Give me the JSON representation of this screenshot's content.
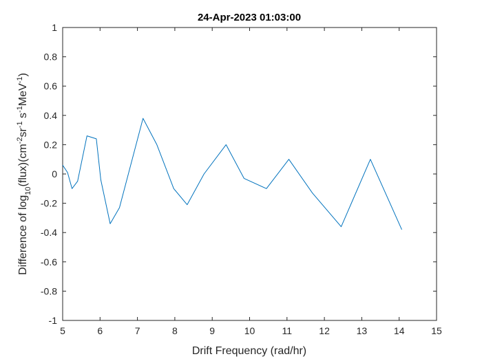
{
  "chart_data": {
    "type": "line",
    "title": "24-Apr-2023 01:03:00",
    "xlabel": "Drift Frequency (rad/hr)",
    "ylabel": {
      "prefix": "Difference of log",
      "sub10": "10",
      "flux": "(flux)(cm",
      "sup1": "-2",
      "sr": "sr",
      "sup2": "-1",
      "s": " s",
      "sup3": "-1",
      "mev": "MeV",
      "sup4": "-1",
      "close": ")"
    },
    "xlim": [
      5,
      15
    ],
    "ylim": [
      -1,
      1
    ],
    "xticks": [
      "5",
      "6",
      "7",
      "8",
      "9",
      "10",
      "11",
      "12",
      "13",
      "14",
      "15"
    ],
    "yticks": [
      "-1",
      "-0.8",
      "-0.6",
      "-0.4",
      "-0.2",
      "0",
      "0.2",
      "0.4",
      "0.6",
      "0.8",
      "1"
    ],
    "grid": false,
    "series": [
      {
        "color": "#0072BD",
        "x": [
          5.0,
          5.13,
          5.25,
          5.4,
          5.65,
          5.9,
          6.02,
          6.27,
          6.52,
          7.15,
          7.52,
          7.97,
          8.33,
          8.78,
          9.37,
          9.85,
          10.45,
          11.05,
          11.68,
          12.45,
          13.23,
          14.07
        ],
        "y": [
          0.06,
          0.01,
          -0.1,
          -0.05,
          0.26,
          0.24,
          -0.04,
          -0.34,
          -0.23,
          0.38,
          0.2,
          -0.1,
          -0.21,
          0.0,
          0.2,
          -0.03,
          -0.1,
          0.1,
          -0.13,
          -0.36,
          0.1,
          -0.38
        ]
      }
    ]
  }
}
